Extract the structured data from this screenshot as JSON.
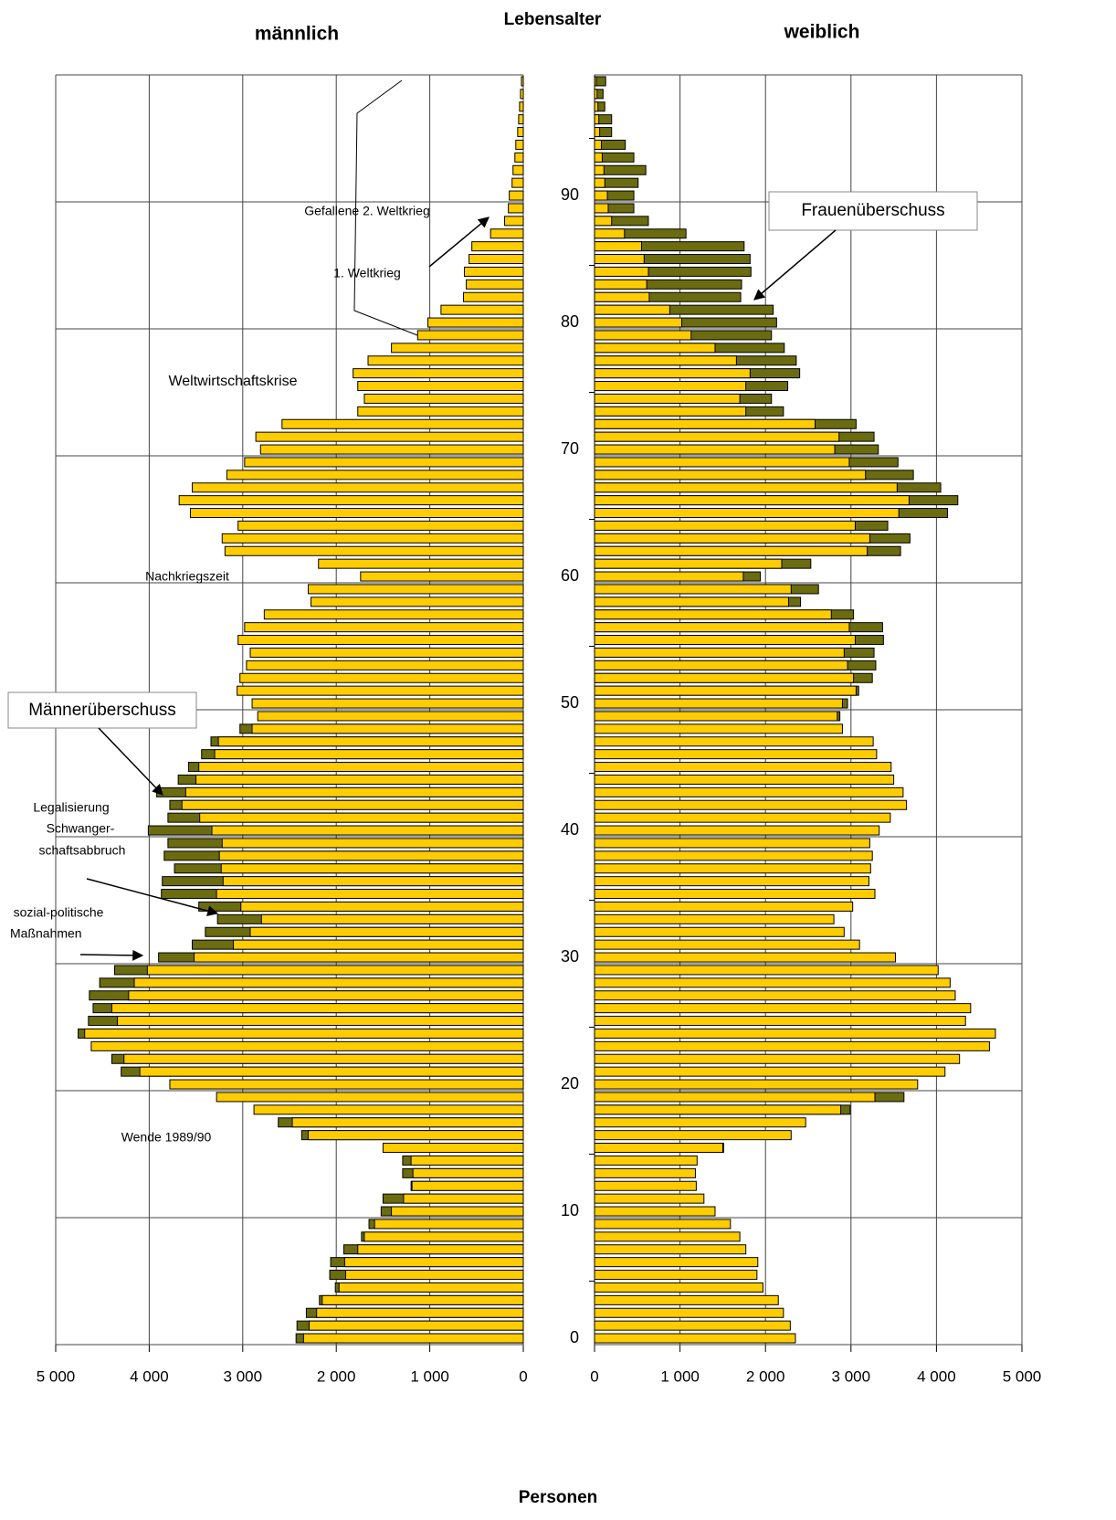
{
  "chart_data": {
    "type": "population-pyramid",
    "title": "Lebensalter",
    "xlabel": "Personen",
    "categories": [
      0,
      null,
      null,
      null,
      null,
      null,
      null,
      null,
      null,
      null,
      10,
      null,
      null,
      null,
      null,
      null,
      null,
      null,
      null,
      null,
      20,
      null,
      null,
      null,
      null,
      null,
      null,
      null,
      null,
      null,
      30,
      null,
      null,
      null,
      null,
      null,
      null,
      null,
      null,
      null,
      40,
      null,
      null,
      null,
      null,
      null,
      null,
      null,
      null,
      null,
      50,
      null,
      null,
      null,
      null,
      null,
      null,
      null,
      null,
      null,
      60,
      null,
      null,
      null,
      null,
      null,
      null,
      null,
      null,
      null,
      70,
      null,
      null,
      null,
      null,
      null,
      null,
      null,
      null,
      null,
      80,
      null,
      null,
      null,
      null,
      null,
      null,
      null,
      null,
      null,
      90,
      null,
      null,
      null,
      null,
      null,
      null,
      null,
      null,
      null
    ],
    "series": [
      {
        "name": "männlich",
        "color": "#ffcc00",
        "surplus_color": "#6b6b10",
        "values": [
          2430,
          2420,
          2320,
          2180,
          2010,
          2070,
          2060,
          1920,
          1730,
          1650,
          1520,
          1500,
          1200,
          1290,
          1290,
          1500,
          2370,
          2620,
          2880,
          3280,
          3780,
          4300,
          4400,
          4620,
          4760,
          4650,
          4600,
          4640,
          4530,
          4370,
          3900,
          3540,
          3400,
          3270,
          3470,
          3870,
          3860,
          3730,
          3840,
          3800,
          4010,
          3800,
          3780,
          3920,
          3690,
          3580,
          3440,
          3340,
          3030,
          2840,
          2900,
          3060,
          3030,
          2960,
          2920,
          3050,
          2980,
          2770,
          2270,
          2300,
          1740,
          2190,
          3190,
          3220,
          3050,
          3560,
          3680,
          3540,
          3170,
          2980,
          2810,
          2860,
          2580,
          1770,
          1700,
          1770,
          1820,
          1660,
          1410,
          1130,
          1020,
          880,
          640,
          610,
          630,
          580,
          550,
          350,
          200,
          160,
          150,
          120,
          110,
          90,
          80,
          60,
          50,
          40,
          30,
          20
        ]
      },
      {
        "name": "weiblich",
        "color": "#ffcc00",
        "surplus_color": "#6b6b10",
        "values": [
          2350,
          2290,
          2210,
          2150,
          1970,
          1900,
          1910,
          1770,
          1700,
          1590,
          1410,
          1280,
          1190,
          1180,
          1200,
          1510,
          2300,
          2470,
          2990,
          3620,
          3780,
          4100,
          4270,
          4620,
          4690,
          4340,
          4400,
          4220,
          4160,
          4020,
          3520,
          3100,
          2920,
          2800,
          3020,
          3280,
          3210,
          3230,
          3250,
          3220,
          3330,
          3460,
          3650,
          3610,
          3500,
          3470,
          3300,
          3260,
          2900,
          2870,
          2960,
          3090,
          3250,
          3290,
          3270,
          3380,
          3370,
          3030,
          2410,
          2620,
          1940,
          2530,
          3580,
          3690,
          3430,
          4130,
          4250,
          4050,
          3730,
          3550,
          3320,
          3270,
          3060,
          2210,
          2070,
          2260,
          2400,
          2360,
          2220,
          2070,
          2130,
          2090,
          1710,
          1720,
          1830,
          1820,
          1750,
          1070,
          630,
          460,
          460,
          510,
          600,
          460,
          360,
          200,
          200,
          120,
          100,
          130
        ]
      }
    ],
    "xlim": [
      0,
      5000
    ],
    "xticks": [
      0,
      {
        "value": 1000,
        "label": "1 000"
      },
      {
        "value": 2000,
        "label": "2 000"
      },
      {
        "value": 3000,
        "label": "3 000"
      },
      {
        "value": 4000,
        "label": "4 000"
      },
      {
        "value": 5000,
        "label": "5 000"
      }
    ],
    "grid": true,
    "annotations": [
      [
        "Gefallene 2. Weltkrieg"
      ],
      [
        "1. Weltkrieg"
      ],
      [
        "Weltwirtschaftskrise"
      ],
      [
        "Nachkriegszeit"
      ],
      [
        "Männerüberschuss"
      ],
      [
        "Legalisierung",
        "Schwanger-",
        "schaftsabbruch"
      ],
      [
        "sozial-politische",
        "Maßnahmen"
      ],
      [
        "Wende 1989/90"
      ],
      [
        "Frauenüberschuss"
      ]
    ]
  }
}
